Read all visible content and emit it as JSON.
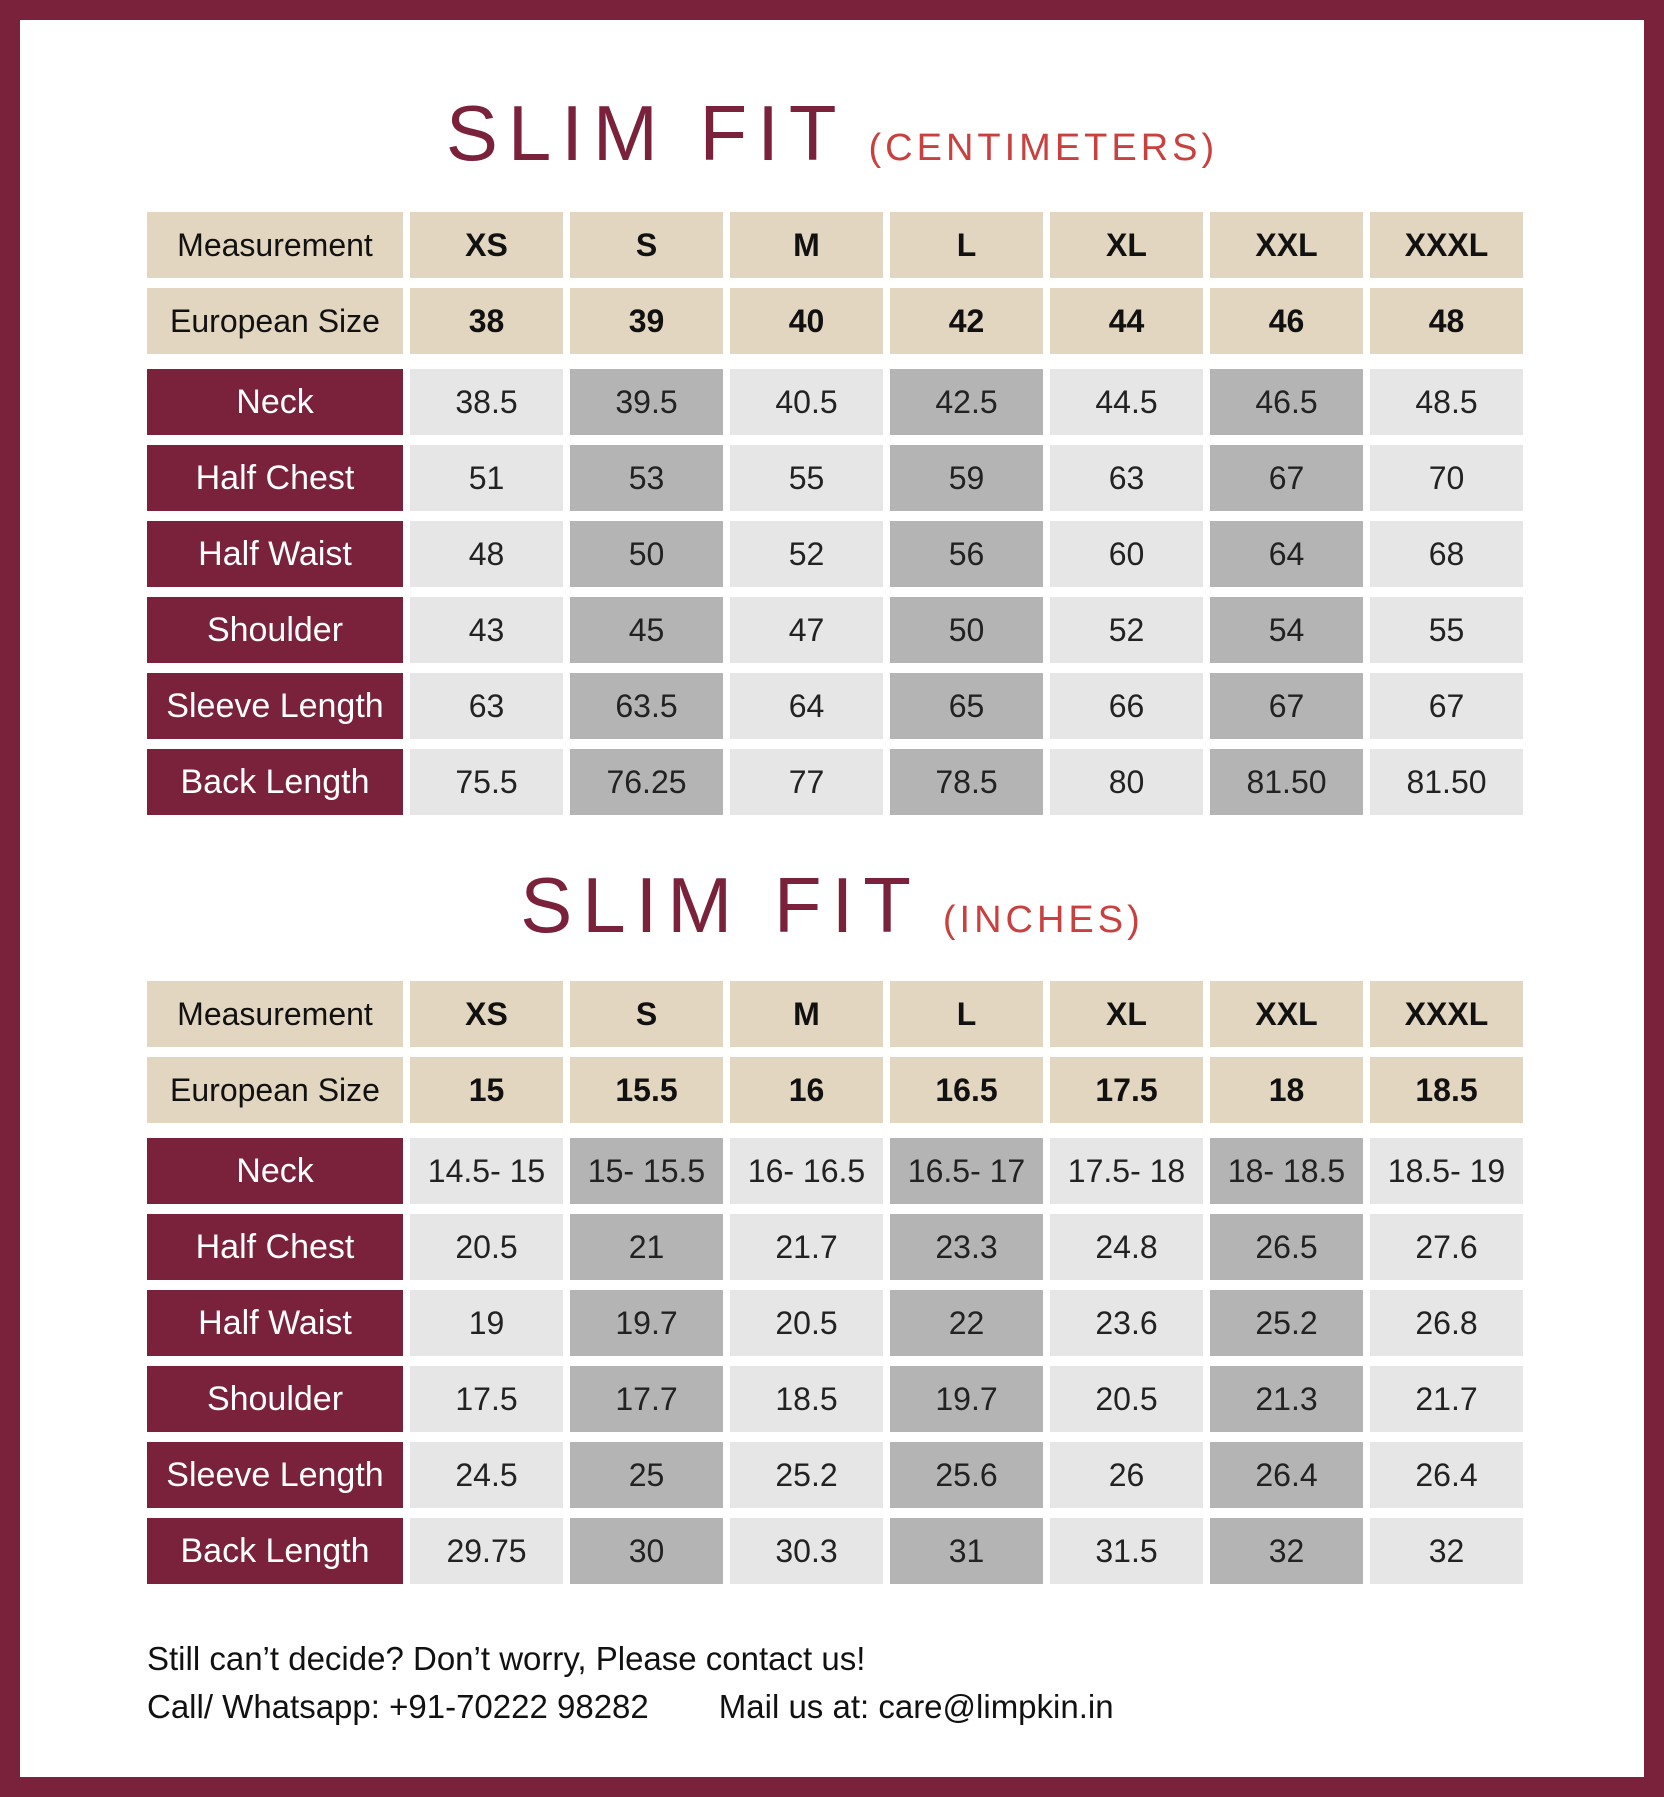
{
  "colors": {
    "border": "#7a213b",
    "header_bg": "#e2d6c1",
    "label_bg": "#7a213b",
    "light_cell": "#e6e6e6",
    "dark_cell": "#b4b4b4",
    "subtitle": "#c8413f"
  },
  "tables": [
    {
      "title": "SLIM FIT",
      "unit": "(CENTIMETERS)",
      "header": [
        "Measurement",
        "XS",
        "S",
        "M",
        "L",
        "XL",
        "XXL",
        "XXXL"
      ],
      "european": [
        "European Size",
        "38",
        "39",
        "40",
        "42",
        "44",
        "46",
        "48"
      ],
      "rows": [
        [
          "Neck",
          "38.5",
          "39.5",
          "40.5",
          "42.5",
          "44.5",
          "46.5",
          "48.5"
        ],
        [
          "Half Chest",
          "51",
          "53",
          "55",
          "59",
          "63",
          "67",
          "70"
        ],
        [
          "Half Waist",
          "48",
          "50",
          "52",
          "56",
          "60",
          "64",
          "68"
        ],
        [
          "Shoulder",
          "43",
          "45",
          "47",
          "50",
          "52",
          "54",
          "55"
        ],
        [
          "Sleeve Length",
          "63",
          "63.5",
          "64",
          "65",
          "66",
          "67",
          "67"
        ],
        [
          "Back Length",
          "75.5",
          "76.25",
          "77",
          "78.5",
          "80",
          "81.50",
          "81.50"
        ]
      ]
    },
    {
      "title": "SLIM FIT",
      "unit": "(INCHES)",
      "header": [
        "Measurement",
        "XS",
        "S",
        "M",
        "L",
        "XL",
        "XXL",
        "XXXL"
      ],
      "european": [
        "European Size",
        "15",
        "15.5",
        "16",
        "16.5",
        "17.5",
        "18",
        "18.5"
      ],
      "rows": [
        [
          "Neck",
          "14.5- 15",
          "15- 15.5",
          "16- 16.5",
          "16.5- 17",
          "17.5- 18",
          "18- 18.5",
          "18.5- 19"
        ],
        [
          "Half Chest",
          "20.5",
          "21",
          "21.7",
          "23.3",
          "24.8",
          "26.5",
          "27.6"
        ],
        [
          "Half Waist",
          "19",
          "19.7",
          "20.5",
          "22",
          "23.6",
          "25.2",
          "26.8"
        ],
        [
          "Shoulder",
          "17.5",
          "17.7",
          "18.5",
          "19.7",
          "20.5",
          "21.3",
          "21.7"
        ],
        [
          "Sleeve Length",
          "24.5",
          "25",
          "25.2",
          "25.6",
          "26",
          "26.4",
          "26.4"
        ],
        [
          "Back Length",
          "29.75",
          "30",
          "30.3",
          "31",
          "31.5",
          "32",
          "32"
        ]
      ]
    }
  ],
  "footer": {
    "line1": "Still can’t decide? Don’t worry, Please contact us!",
    "phone": "Call/ Whatsapp: +91-70222 98282",
    "mail": "Mail us at: care@limpkin.in"
  }
}
